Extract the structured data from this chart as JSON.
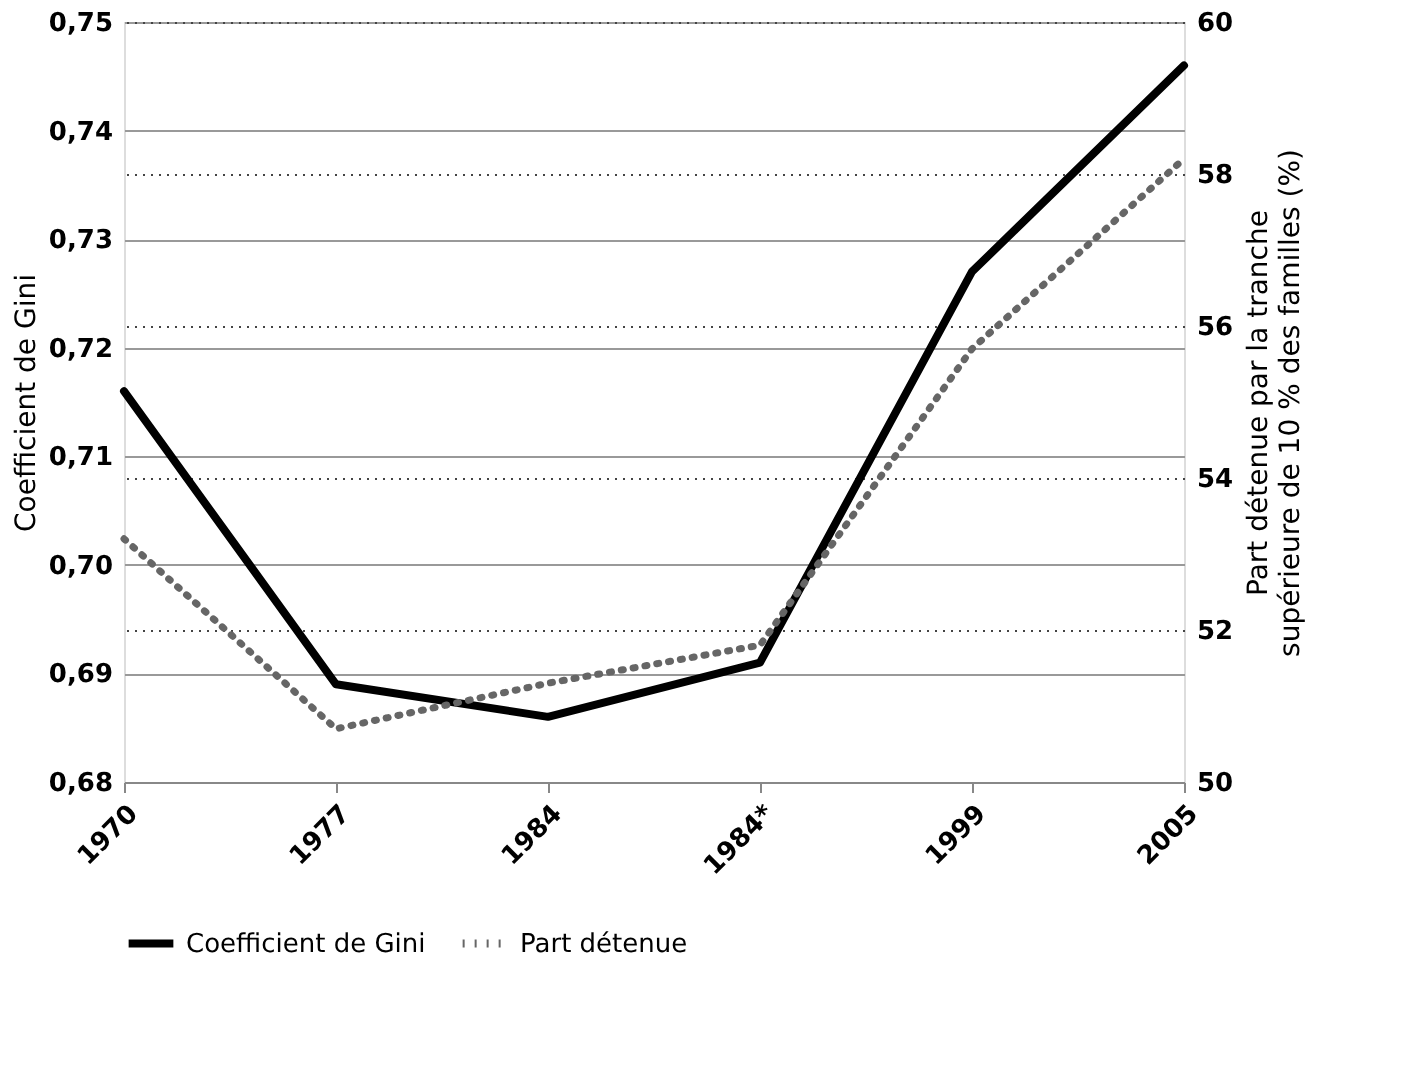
{
  "chart_data": {
    "type": "line",
    "ylabel": "Coefficient de Gini",
    "y2label": "Part détenue par la tranche\nsupérieure de 10 % des familles (%)",
    "categories": [
      "1970",
      "1977",
      "1984",
      "1984*",
      "1999",
      "2005"
    ],
    "series": [
      {
        "name": "Coefficient de Gini",
        "color": "#000000",
        "line_style": "solid",
        "values": [
          0.716,
          0.689,
          0.686,
          0.691,
          0.727,
          0.746
        ]
      },
      {
        "name": "Part détenue",
        "color": "#666666",
        "line_style": "dotted",
        "axis": "y2",
        "values": [
          53.2,
          50.7,
          51.3,
          51.8,
          55.7,
          58.2
        ]
      }
    ],
    "ylim": [
      0.68,
      0.75
    ],
    "yticks": [
      {
        "value": 0.68,
        "label": "0,68"
      },
      {
        "value": 0.69,
        "label": "0,69"
      },
      {
        "value": 0.7,
        "label": "0,70"
      },
      {
        "value": 0.71,
        "label": "0,71"
      },
      {
        "value": 0.72,
        "label": "0,72"
      },
      {
        "value": 0.73,
        "label": "0,73"
      },
      {
        "value": 0.74,
        "label": "0,74"
      },
      {
        "value": 0.75,
        "label": "0,75"
      }
    ],
    "y2lim": [
      50,
      60
    ],
    "y2ticks": [
      50,
      52,
      54,
      56,
      58,
      60
    ],
    "grid": true,
    "legend": "bottom"
  }
}
